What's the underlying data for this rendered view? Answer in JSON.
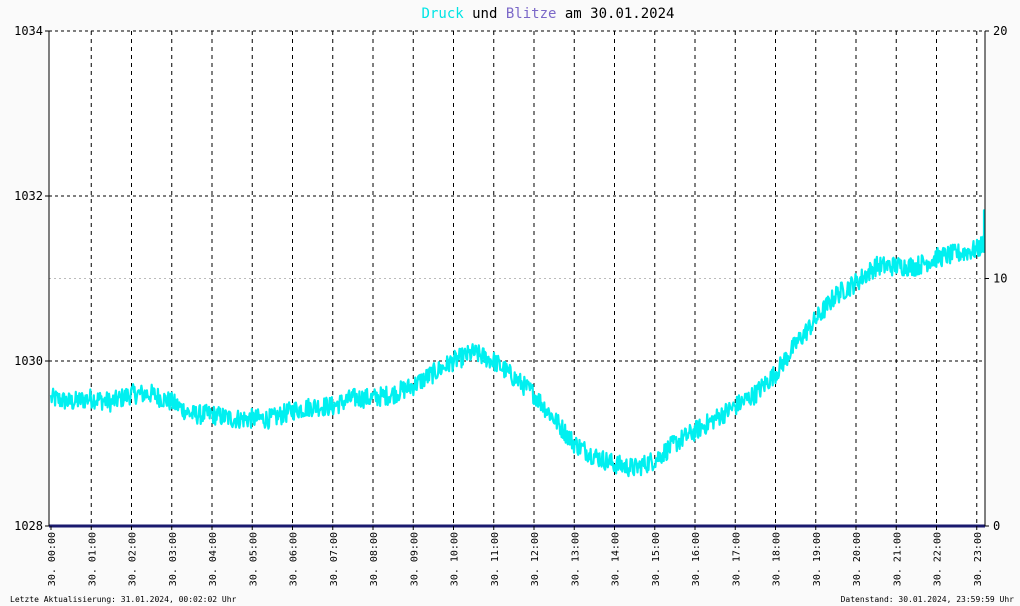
{
  "chart_data": {
    "type": "line",
    "title": {
      "parts": [
        {
          "text": "Druck",
          "color": "#00e5e5"
        },
        {
          "text": " und ",
          "color": "#000000"
        },
        {
          "text": "Blitze",
          "color": "#7b68c8"
        },
        {
          "text": " am 30.01.2024",
          "color": "#000000"
        }
      ]
    },
    "y_left": {
      "min": 1028,
      "max": 1034,
      "ticks": [
        "1028",
        "1030",
        "1032",
        "1034"
      ],
      "major_ticks": [
        1028,
        1030,
        1032,
        1034
      ],
      "minor_ticks": [
        1031
      ]
    },
    "y_right": {
      "min": 0,
      "max": 20,
      "ticks": [
        "0",
        "10",
        "20"
      ]
    },
    "x_ticks": [
      "30. 00:00",
      "30. 01:00",
      "30. 02:00",
      "30. 03:00",
      "30. 04:00",
      "30. 05:00",
      "30. 06:00",
      "30. 07:00",
      "30. 08:00",
      "30. 09:00",
      "30. 10:00",
      "30. 11:00",
      "30. 12:00",
      "30. 13:00",
      "30. 14:00",
      "30. 15:00",
      "30. 16:00",
      "30. 17:00",
      "30. 18:00",
      "30. 19:00",
      "30. 20:00",
      "30. 21:00",
      "30. 22:00",
      "30. 23:00"
    ],
    "x_range_hours": [
      0,
      23.99
    ],
    "grid": true,
    "series": [
      {
        "name": "Druck",
        "axis": "left",
        "color": "#00f0f0",
        "noise": 0.12,
        "x_hours": [
          0,
          0.5,
          1,
          1.5,
          2,
          2.5,
          3,
          3.5,
          4,
          4.5,
          5,
          5.5,
          6,
          6.5,
          7,
          7.5,
          8,
          8.5,
          9,
          9.5,
          10,
          10.5,
          11,
          11.5,
          12,
          12.5,
          13,
          13.5,
          14,
          14.5,
          15,
          15.5,
          16,
          16.5,
          17,
          17.5,
          18,
          18.5,
          19,
          19.5,
          20,
          20.5,
          21,
          21.5,
          22,
          22.5,
          23,
          23.5,
          24
        ],
        "values": [
          1029.55,
          1029.5,
          1029.55,
          1029.5,
          1029.6,
          1029.6,
          1029.5,
          1029.35,
          1029.35,
          1029.3,
          1029.3,
          1029.3,
          1029.4,
          1029.45,
          1029.45,
          1029.55,
          1029.55,
          1029.6,
          1029.7,
          1029.85,
          1030.0,
          1030.1,
          1030.0,
          1029.8,
          1029.6,
          1029.3,
          1029.0,
          1028.85,
          1028.75,
          1028.7,
          1028.8,
          1029.0,
          1029.15,
          1029.3,
          1029.45,
          1029.6,
          1029.85,
          1030.2,
          1030.5,
          1030.8,
          1030.95,
          1031.15,
          1031.15,
          1031.15,
          1031.25,
          1031.3,
          1031.35,
          1031.55,
          1031.75
        ]
      },
      {
        "name": "Blitze",
        "axis": "right",
        "color": "#1a1a6e",
        "x_hours": [
          0,
          23.99
        ],
        "values": [
          0,
          0
        ]
      }
    ]
  },
  "footer": {
    "left": "Letzte Aktualisierung: 31.01.2024, 00:02:02 Uhr",
    "right": "Datenstand: 30.01.2024, 23:59:59 Uhr"
  }
}
